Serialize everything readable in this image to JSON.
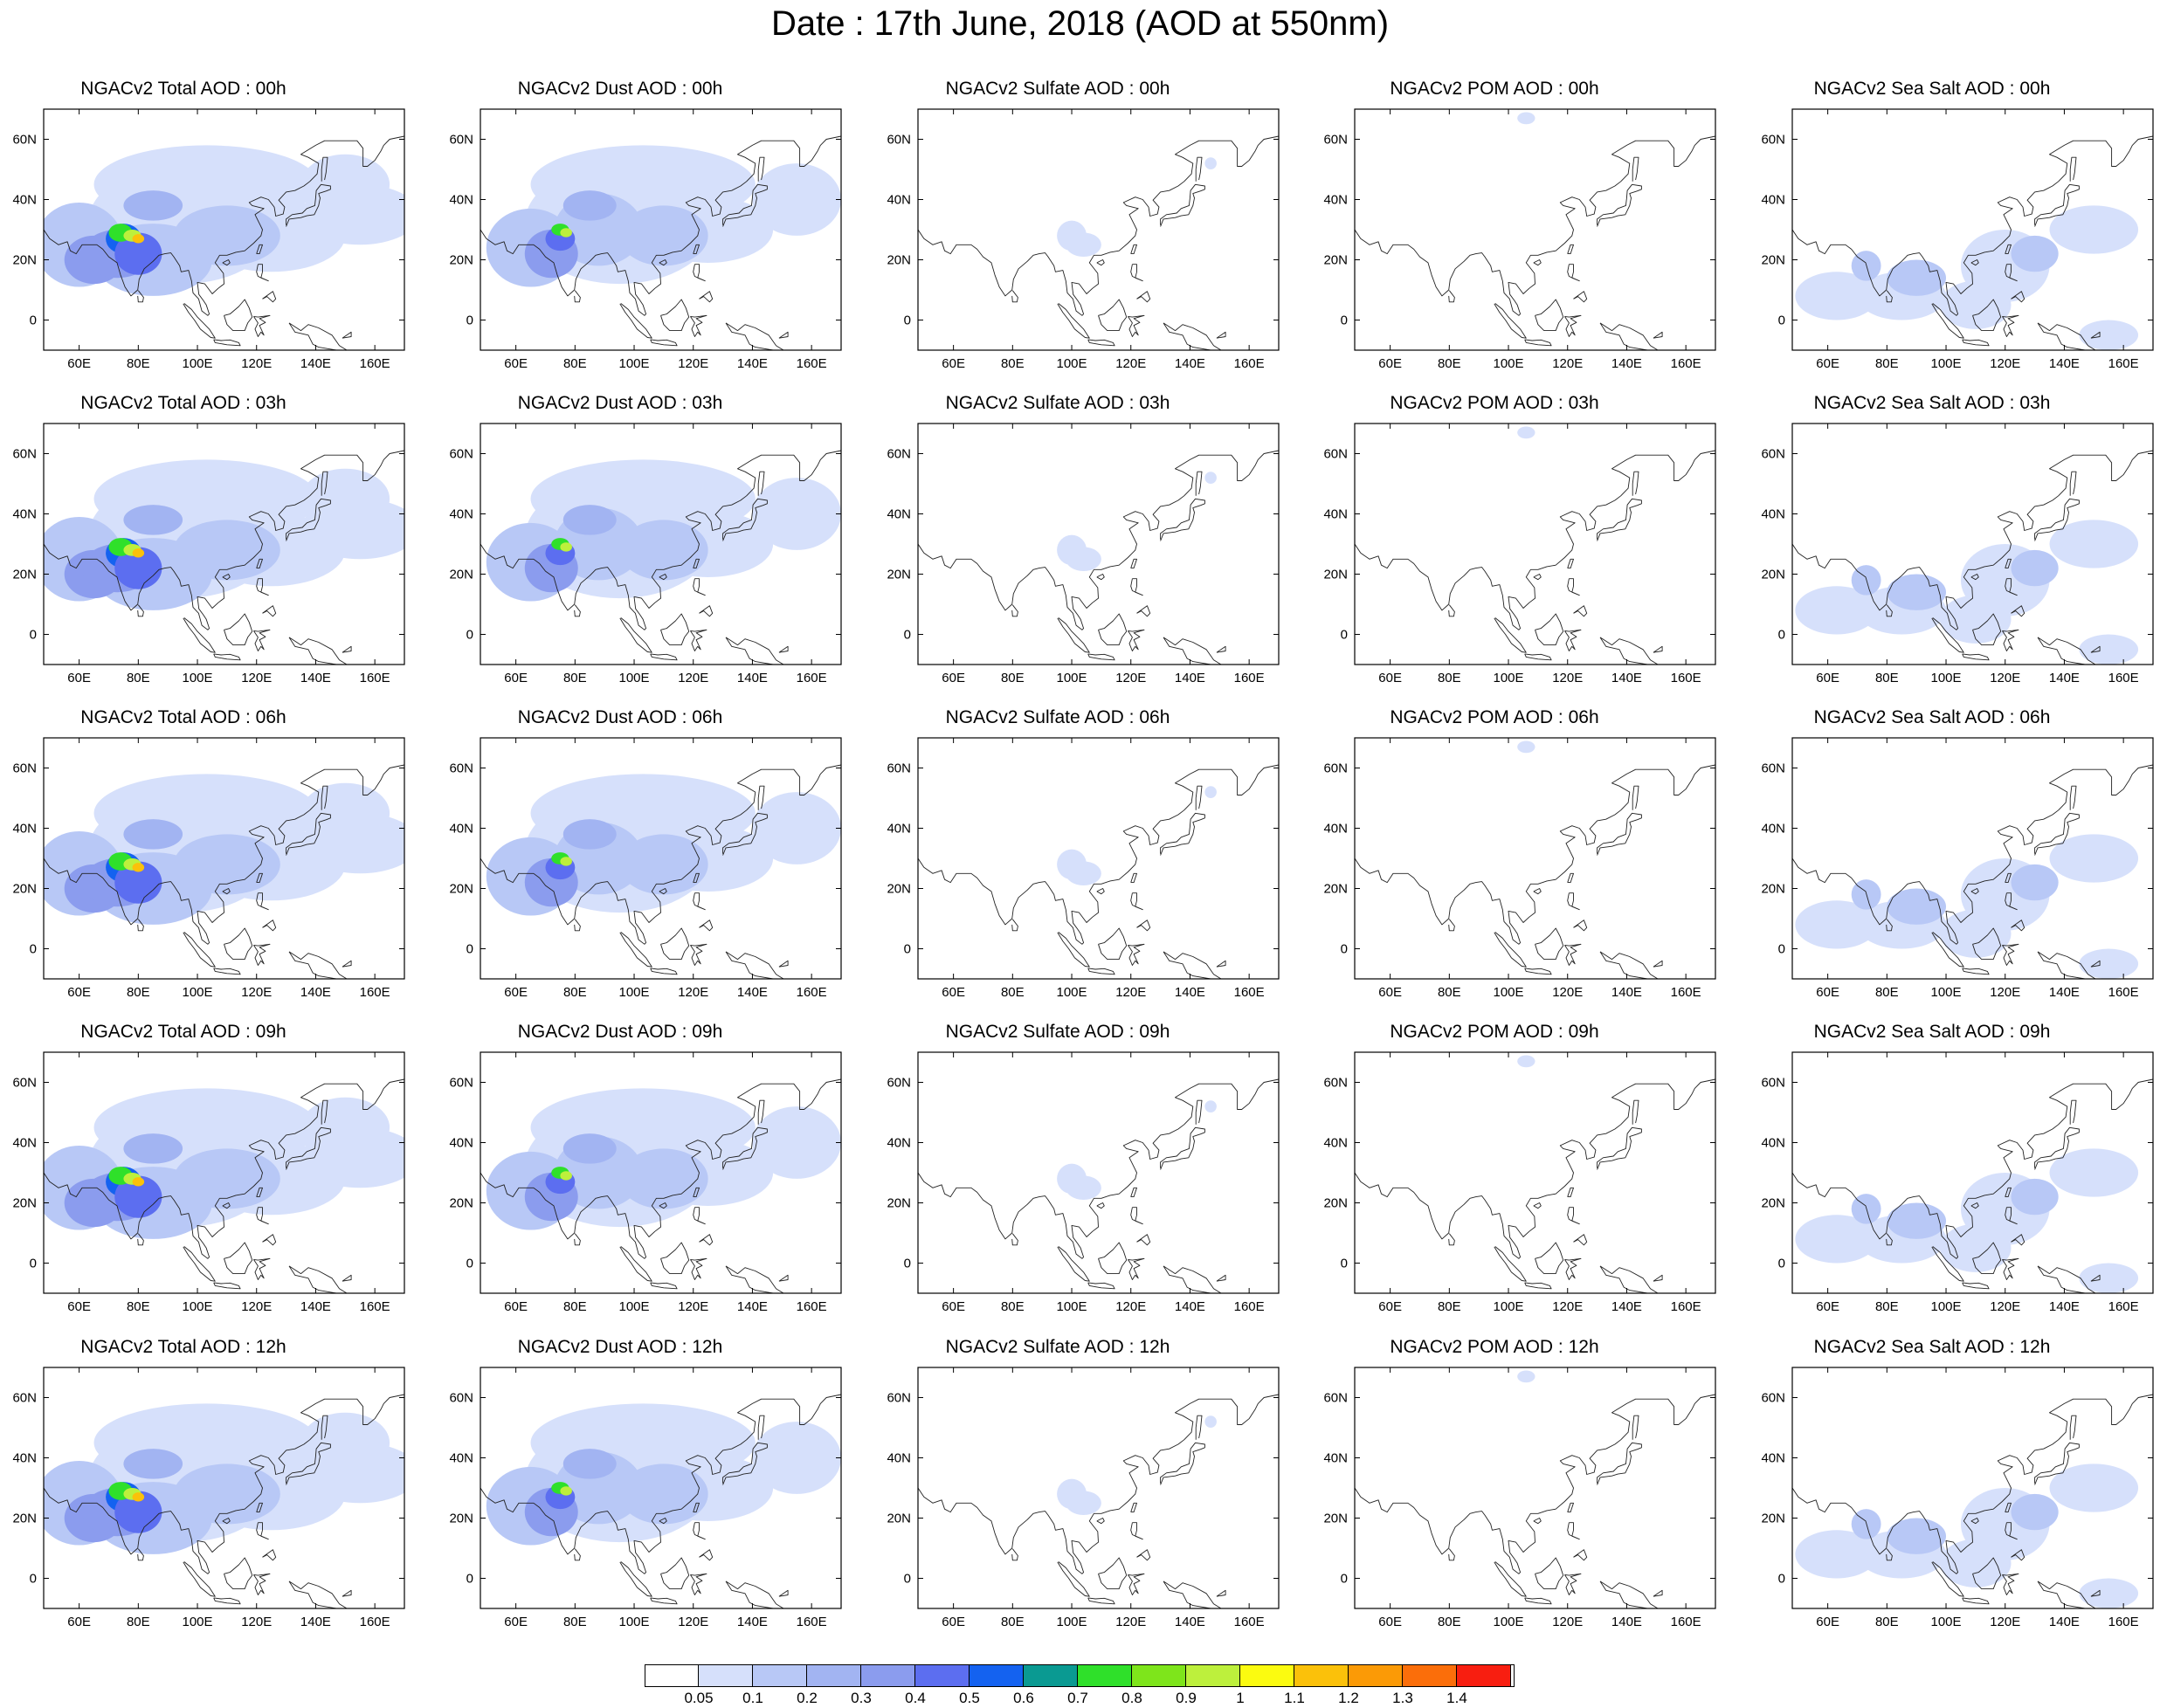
{
  "title": "Date : 17th June, 2018 (AOD at 550nm)",
  "map": {
    "lon_range": [
      48,
      170
    ],
    "lat_range": [
      -10,
      70
    ],
    "lon_ticks": [
      60,
      80,
      100,
      120,
      140,
      160
    ],
    "lon_tick_labels": [
      "60E",
      "80E",
      "100E",
      "120E",
      "140E",
      "160E"
    ],
    "lat_ticks": [
      0,
      20,
      40,
      60
    ],
    "lat_tick_labels": [
      "0",
      "20N",
      "40N",
      "60N"
    ]
  },
  "columns": [
    "total",
    "dust",
    "sulfate",
    "pom",
    "seasalt"
  ],
  "panels": [
    [
      "NGACv2 Total AOD : 00h",
      "NGACv2 Dust AOD : 00h",
      "NGACv2 Sulfate AOD : 00h",
      "NGACv2 POM AOD : 00h",
      "NGACv2 Sea Salt AOD : 00h"
    ],
    [
      "NGACv2 Total AOD : 03h",
      "NGACv2 Dust AOD : 03h",
      "NGACv2 Sulfate AOD : 03h",
      "NGACv2 POM AOD : 03h",
      "NGACv2 Sea Salt AOD : 03h"
    ],
    [
      "NGACv2 Total AOD : 06h",
      "NGACv2 Dust AOD : 06h",
      "NGACv2 Sulfate AOD : 06h",
      "NGACv2 POM AOD : 06h",
      "NGACv2 Sea Salt AOD : 06h"
    ],
    [
      "NGACv2 Total AOD : 09h",
      "NGACv2 Dust AOD : 09h",
      "NGACv2 Sulfate AOD : 09h",
      "NGACv2 POM AOD : 09h",
      "NGACv2 Sea Salt  AOD : 09h"
    ],
    [
      "NGACv2 Total AOD  : 12h",
      "NGACv2 Dust AOD : 12h",
      "NGACv2 Sulfate AOD : 12h",
      "NGACv2 POM  AOD : 12h",
      "NGACv2 Sea Salt  AOD : 12h"
    ]
  ],
  "colorbar": {
    "labels": [
      "0.05",
      "0.1",
      "0.2",
      "0.3",
      "0.4",
      "0.5",
      "0.6",
      "0.7",
      "0.8",
      "0.9",
      "1",
      "1.1",
      "1.2",
      "1.3",
      "1.4"
    ],
    "colors": [
      "#ffffff",
      "#d6e0fb",
      "#b8c8f6",
      "#a2b4f2",
      "#8b9cee",
      "#5c6ef0",
      "#1462f0",
      "#0a9a92",
      "#2fe02a",
      "#7ee51b",
      "#bdf03c",
      "#fbfb10",
      "#fbc10a",
      "#fb9a06",
      "#fb6e0a",
      "#f81e10"
    ]
  }
}
